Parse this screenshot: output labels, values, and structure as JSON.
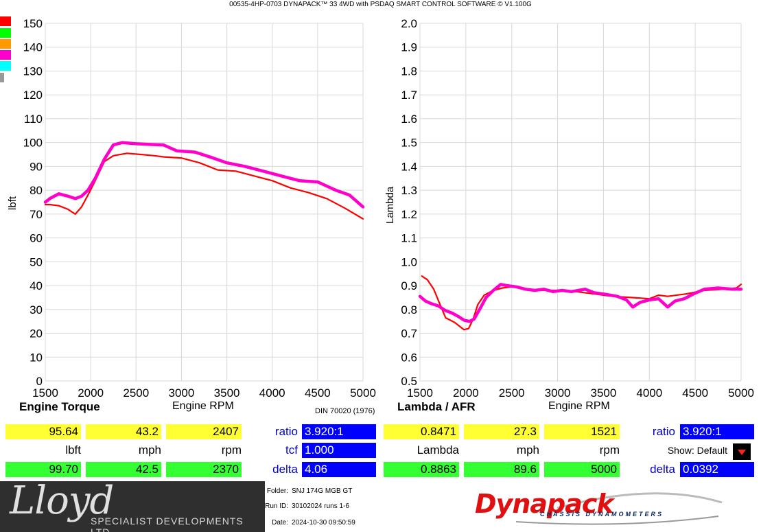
{
  "app_title": "00535-4HP-0703 DYNAPACK™ 33 4WD with PSDAQ SMART CONTROL SOFTWARE © V1.100G",
  "swatches": [
    "#ff0000",
    "#00ff00",
    "#ff9900",
    "#ff00cc",
    "#00ffff",
    "#999999"
  ],
  "left": {
    "title": "Engine Torque",
    "xlabel": "Engine RPM",
    "ylabel": "lbft",
    "din": "DIN 70020 (1976)",
    "row1": {
      "v1": "95.64",
      "v2": "43.2",
      "v3": "2407"
    },
    "units": {
      "u1": "lbft",
      "u2": "mph",
      "u3": "rpm"
    },
    "row2": {
      "v1": "99.70",
      "v2": "42.5",
      "v3": "2370"
    },
    "ratio_label": "ratio",
    "ratio": "3.920:1",
    "tcf_label": "tcf",
    "tcf": "1.000",
    "delta_label": "delta",
    "delta": "4.06"
  },
  "right": {
    "title": "Lambda / AFR",
    "xlabel": "Engine RPM",
    "ylabel": "Lambda",
    "row1": {
      "v1": "0.8471",
      "v2": "27.3",
      "v3": "1521"
    },
    "units": {
      "u1": "Lambda",
      "u2": "mph",
      "u3": "rpm"
    },
    "row2": {
      "v1": "0.8863",
      "v2": "89.6",
      "v3": "5000"
    },
    "ratio_label": "ratio",
    "ratio": "3.920:1",
    "show_label": "Show: Default",
    "delta_label": "delta",
    "delta": "0.0392"
  },
  "footer": {
    "logo_script": "Lloyd",
    "logo_sub": "SPECIALIST DEVELOPMENTS LTD",
    "folder_label": "Folder:",
    "folder": "SNJ 174G MGB GT",
    "run_label": "Run ID:",
    "run": "30102024 runs 1-6",
    "date_label": "Date:",
    "date": "2024-10-30 09:50:59",
    "brand": "Dynapack",
    "brand_sub": "CHASSIS DYNAMOMETERS"
  },
  "chart_data": [
    {
      "type": "line",
      "title": "Engine Torque",
      "xlabel": "Engine RPM",
      "ylabel": "lbft",
      "xlim": [
        1500,
        5000
      ],
      "ylim": [
        0,
        150
      ],
      "xticks": [
        1500,
        2000,
        2500,
        3000,
        3500,
        4000,
        4500,
        5000
      ],
      "yticks": [
        0,
        10,
        20,
        30,
        40,
        50,
        60,
        70,
        80,
        90,
        100,
        110,
        120,
        130,
        140,
        150
      ],
      "grid": true,
      "series": [
        {
          "color": "#ff0000",
          "x": [
            1500,
            1550,
            1650,
            1750,
            1830,
            1900,
            1970,
            2050,
            2150,
            2250,
            2400,
            2550,
            2700,
            2800,
            3000,
            3200,
            3400,
            3600,
            3800,
            4000,
            4200,
            4400,
            4600,
            4800,
            5000
          ],
          "y": [
            74,
            74,
            73.5,
            72,
            70,
            73,
            78,
            84,
            92,
            94.5,
            95.5,
            95,
            94.5,
            94,
            93.5,
            91.5,
            88.5,
            88,
            86,
            84,
            81,
            79,
            76.5,
            72.5,
            68
          ]
        },
        {
          "color": "#ff00cc",
          "x": [
            1500,
            1550,
            1650,
            1750,
            1830,
            1900,
            1970,
            2050,
            2150,
            2250,
            2350,
            2500,
            2650,
            2800,
            2950,
            3150,
            3350,
            3500,
            3700,
            3900,
            4100,
            4300,
            4500,
            4700,
            4850,
            5000
          ],
          "y": [
            75,
            76.5,
            78.5,
            77.5,
            76.5,
            77.5,
            80,
            85,
            93,
            99,
            100,
            99.5,
            99.2,
            99,
            96.5,
            96,
            93.5,
            91.5,
            90,
            88,
            86,
            84,
            83.5,
            80,
            78,
            73
          ]
        }
      ]
    },
    {
      "type": "line",
      "title": "Lambda / AFR",
      "xlabel": "Engine RPM",
      "ylabel": "Lambda",
      "xlim": [
        1500,
        5000
      ],
      "ylim": [
        0.5,
        2.0
      ],
      "xticks": [
        1500,
        2000,
        2500,
        3000,
        3500,
        4000,
        4500,
        5000
      ],
      "yticks": [
        0.5,
        0.6,
        0.7,
        0.8,
        0.9,
        1.0,
        1.1,
        1.2,
        1.3,
        1.4,
        1.5,
        1.6,
        1.7,
        1.8,
        1.9,
        2.0
      ],
      "grid": true,
      "series": [
        {
          "color": "#ff0000",
          "x": [
            1520,
            1580,
            1650,
            1720,
            1780,
            1830,
            1880,
            1930,
            1980,
            2030,
            2080,
            2130,
            2200,
            2300,
            2400,
            2500,
            2650,
            2800,
            3000,
            3200,
            3400,
            3600,
            3800,
            4000,
            4100,
            4200,
            4400,
            4600,
            4800,
            4950,
            5000
          ],
          "y": [
            0.94,
            0.925,
            0.885,
            0.82,
            0.765,
            0.755,
            0.745,
            0.73,
            0.715,
            0.72,
            0.76,
            0.82,
            0.86,
            0.88,
            0.89,
            0.895,
            0.885,
            0.88,
            0.88,
            0.875,
            0.865,
            0.855,
            0.85,
            0.845,
            0.86,
            0.855,
            0.865,
            0.88,
            0.885,
            0.89,
            0.905
          ]
        },
        {
          "color": "#ff00cc",
          "x": [
            1500,
            1560,
            1620,
            1700,
            1780,
            1850,
            1920,
            1980,
            2040,
            2090,
            2150,
            2220,
            2300,
            2380,
            2450,
            2550,
            2650,
            2750,
            2850,
            2950,
            3050,
            3150,
            3300,
            3400,
            3500,
            3650,
            3750,
            3820,
            3900,
            4000,
            4100,
            4200,
            4280,
            4380,
            4480,
            4600,
            4750,
            4900,
            5000
          ],
          "y": [
            0.855,
            0.835,
            0.825,
            0.815,
            0.795,
            0.785,
            0.77,
            0.755,
            0.75,
            0.76,
            0.8,
            0.85,
            0.88,
            0.905,
            0.9,
            0.895,
            0.885,
            0.88,
            0.885,
            0.875,
            0.88,
            0.875,
            0.885,
            0.87,
            0.865,
            0.855,
            0.84,
            0.81,
            0.83,
            0.84,
            0.845,
            0.81,
            0.835,
            0.845,
            0.865,
            0.885,
            0.89,
            0.885,
            0.885
          ]
        }
      ]
    }
  ]
}
